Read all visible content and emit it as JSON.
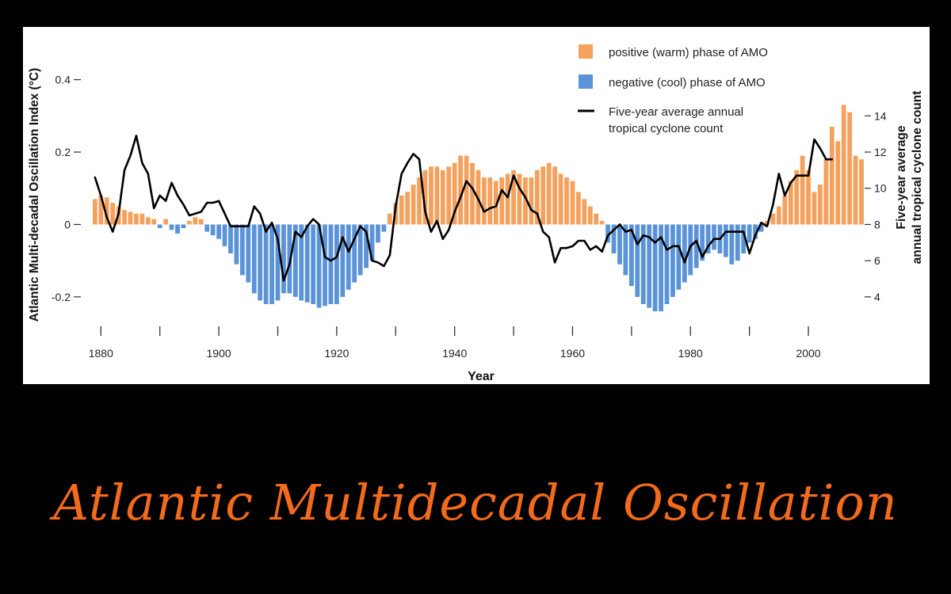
{
  "slide": {
    "title": "Atlantic Multidecadal Oscillation",
    "title_color": "#f26a1b",
    "background": "#000000"
  },
  "chart_data": {
    "type": "bar",
    "title": "",
    "xlabel": "Year",
    "ylabel": "Atlantic Multi-decadal Oscillation Index (°C)",
    "y2label_line1": "Five-year average",
    "y2label_line2": "annual tropical cyclone count",
    "grid": false,
    "legend_position": "top-right",
    "xlim": [
      1877,
      2009
    ],
    "ylim": [
      -0.29,
      0.41
    ],
    "y2lim": [
      2.2,
      16.2
    ],
    "x_ticks": [
      1880,
      1900,
      1920,
      1940,
      1960,
      1980,
      2000
    ],
    "x_minor_ticks": [
      1890,
      1910,
      1930,
      1950,
      1970,
      1990
    ],
    "y_ticks": [
      {
        "value": 0.4,
        "label": "0.4"
      },
      {
        "value": 0.2,
        "label": "0.2"
      },
      {
        "value": 0,
        "label": "0"
      },
      {
        "value": -0.2,
        "label": "-0.2"
      }
    ],
    "y2_ticks": [
      {
        "value": 14,
        "label": "14"
      },
      {
        "value": 12,
        "label": "12"
      },
      {
        "value": 10,
        "label": "10"
      },
      {
        "value": 8,
        "label": "8"
      },
      {
        "value": 6,
        "label": "6"
      },
      {
        "value": 4,
        "label": "4"
      }
    ],
    "legend": [
      {
        "label": "positive (warm) phase of AMO",
        "kind": "bar",
        "color": "#f4a15d"
      },
      {
        "label": "negative (cool) phase of AMO",
        "kind": "bar",
        "color": "#5b93d8"
      },
      {
        "label_line1": "Five-year average annual",
        "label_line2": "tropical cyclone count",
        "kind": "line",
        "color": "#000000"
      }
    ],
    "colors": {
      "positive": "#f4a15d",
      "negative": "#5b93d8",
      "line": "#000000"
    },
    "amo_start_year": 1879,
    "amo_index": [
      0.07,
      0.08,
      0.075,
      0.06,
      0.05,
      0.04,
      0.035,
      0.03,
      0.03,
      0.02,
      0.015,
      -0.01,
      0.015,
      -0.015,
      -0.025,
      -0.01,
      0.01,
      0.02,
      0.015,
      -0.02,
      -0.03,
      -0.04,
      -0.06,
      -0.08,
      -0.11,
      -0.14,
      -0.16,
      -0.19,
      -0.21,
      -0.22,
      -0.22,
      -0.21,
      -0.19,
      -0.19,
      -0.2,
      -0.21,
      -0.215,
      -0.22,
      -0.23,
      -0.225,
      -0.22,
      -0.22,
      -0.2,
      -0.18,
      -0.16,
      -0.14,
      -0.12,
      -0.1,
      -0.05,
      -0.02,
      0.03,
      0.06,
      0.08,
      0.09,
      0.11,
      0.13,
      0.15,
      0.16,
      0.16,
      0.15,
      0.16,
      0.17,
      0.19,
      0.19,
      0.17,
      0.15,
      0.13,
      0.13,
      0.12,
      0.13,
      0.14,
      0.15,
      0.14,
      0.13,
      0.13,
      0.15,
      0.16,
      0.17,
      0.16,
      0.14,
      0.13,
      0.12,
      0.09,
      0.07,
      0.05,
      0.03,
      0.01,
      -0.05,
      -0.08,
      -0.11,
      -0.14,
      -0.17,
      -0.2,
      -0.22,
      -0.23,
      -0.24,
      -0.24,
      -0.22,
      -0.2,
      -0.18,
      -0.16,
      -0.14,
      -0.12,
      -0.1,
      -0.08,
      -0.07,
      -0.08,
      -0.09,
      -0.11,
      -0.1,
      -0.08,
      -0.05,
      -0.04,
      -0.02,
      0.01,
      0.03,
      0.05,
      0.08,
      0.12,
      0.15,
      0.19,
      0.15,
      0.09,
      0.11,
      0.18,
      0.27,
      0.23,
      0.33,
      0.31,
      0.19,
      0.18
    ],
    "cyclone_5yr_avg": [
      {
        "year": 1879,
        "value": 10.6
      },
      {
        "year": 1880,
        "value": 9.6
      },
      {
        "year": 1881,
        "value": 8.4
      },
      {
        "year": 1882,
        "value": 7.6
      },
      {
        "year": 1883,
        "value": 8.6
      },
      {
        "year": 1884,
        "value": 11.0
      },
      {
        "year": 1885,
        "value": 11.8
      },
      {
        "year": 1886,
        "value": 12.9
      },
      {
        "year": 1887,
        "value": 11.4
      },
      {
        "year": 1888,
        "value": 10.8
      },
      {
        "year": 1889,
        "value": 8.9
      },
      {
        "year": 1890,
        "value": 9.6
      },
      {
        "year": 1891,
        "value": 9.3
      },
      {
        "year": 1892,
        "value": 10.3
      },
      {
        "year": 1893,
        "value": 9.6
      },
      {
        "year": 1894,
        "value": 9.1
      },
      {
        "year": 1895,
        "value": 8.5
      },
      {
        "year": 1896,
        "value": 8.6
      },
      {
        "year": 1897,
        "value": 8.7
      },
      {
        "year": 1898,
        "value": 9.2
      },
      {
        "year": 1899,
        "value": 9.2
      },
      {
        "year": 1900,
        "value": 9.3
      },
      {
        "year": 1901,
        "value": 8.6
      },
      {
        "year": 1902,
        "value": 7.9
      },
      {
        "year": 1903,
        "value": 7.9
      },
      {
        "year": 1904,
        "value": 7.9
      },
      {
        "year": 1905,
        "value": 7.9
      },
      {
        "year": 1906,
        "value": 9.0
      },
      {
        "year": 1907,
        "value": 8.6
      },
      {
        "year": 1908,
        "value": 7.6
      },
      {
        "year": 1909,
        "value": 8.1
      },
      {
        "year": 1910,
        "value": 7.2
      },
      {
        "year": 1911,
        "value": 4.9
      },
      {
        "year": 1912,
        "value": 5.8
      },
      {
        "year": 1913,
        "value": 7.6
      },
      {
        "year": 1914,
        "value": 7.3
      },
      {
        "year": 1915,
        "value": 7.9
      },
      {
        "year": 1916,
        "value": 8.3
      },
      {
        "year": 1917,
        "value": 8.0
      },
      {
        "year": 1918,
        "value": 6.2
      },
      {
        "year": 1919,
        "value": 6.0
      },
      {
        "year": 1920,
        "value": 6.2
      },
      {
        "year": 1921,
        "value": 7.3
      },
      {
        "year": 1922,
        "value": 6.5
      },
      {
        "year": 1923,
        "value": 7.2
      },
      {
        "year": 1924,
        "value": 7.9
      },
      {
        "year": 1925,
        "value": 7.6
      },
      {
        "year": 1926,
        "value": 6.0
      },
      {
        "year": 1927,
        "value": 5.9
      },
      {
        "year": 1928,
        "value": 5.7
      },
      {
        "year": 1929,
        "value": 6.3
      },
      {
        "year": 1930,
        "value": 9.0
      },
      {
        "year": 1931,
        "value": 10.8
      },
      {
        "year": 1932,
        "value": 11.4
      },
      {
        "year": 1933,
        "value": 11.9
      },
      {
        "year": 1934,
        "value": 11.6
      },
      {
        "year": 1935,
        "value": 8.7
      },
      {
        "year": 1936,
        "value": 7.6
      },
      {
        "year": 1937,
        "value": 8.2
      },
      {
        "year": 1938,
        "value": 7.2
      },
      {
        "year": 1939,
        "value": 7.7
      },
      {
        "year": 1940,
        "value": 8.7
      },
      {
        "year": 1941,
        "value": 9.5
      },
      {
        "year": 1942,
        "value": 10.4
      },
      {
        "year": 1943,
        "value": 10.0
      },
      {
        "year": 1944,
        "value": 9.4
      },
      {
        "year": 1945,
        "value": 8.7
      },
      {
        "year": 1946,
        "value": 8.9
      },
      {
        "year": 1947,
        "value": 9.0
      },
      {
        "year": 1948,
        "value": 9.9
      },
      {
        "year": 1949,
        "value": 9.5
      },
      {
        "year": 1950,
        "value": 10.7
      },
      {
        "year": 1951,
        "value": 10.0
      },
      {
        "year": 1952,
        "value": 9.5
      },
      {
        "year": 1953,
        "value": 8.8
      },
      {
        "year": 1954,
        "value": 8.6
      },
      {
        "year": 1955,
        "value": 7.6
      },
      {
        "year": 1956,
        "value": 7.3
      },
      {
        "year": 1957,
        "value": 5.9
      },
      {
        "year": 1958,
        "value": 6.7
      },
      {
        "year": 1959,
        "value": 6.7
      },
      {
        "year": 1960,
        "value": 6.8
      },
      {
        "year": 1961,
        "value": 7.1
      },
      {
        "year": 1962,
        "value": 7.1
      },
      {
        "year": 1963,
        "value": 6.6
      },
      {
        "year": 1964,
        "value": 6.8
      },
      {
        "year": 1965,
        "value": 6.5
      },
      {
        "year": 1966,
        "value": 7.4
      },
      {
        "year": 1967,
        "value": 7.7
      },
      {
        "year": 1968,
        "value": 8.0
      },
      {
        "year": 1969,
        "value": 7.6
      },
      {
        "year": 1970,
        "value": 7.7
      },
      {
        "year": 1971,
        "value": 6.9
      },
      {
        "year": 1972,
        "value": 7.4
      },
      {
        "year": 1973,
        "value": 7.3
      },
      {
        "year": 1974,
        "value": 7.0
      },
      {
        "year": 1975,
        "value": 7.3
      },
      {
        "year": 1976,
        "value": 6.6
      },
      {
        "year": 1977,
        "value": 6.8
      },
      {
        "year": 1978,
        "value": 6.8
      },
      {
        "year": 1979,
        "value": 5.9
      },
      {
        "year": 1980,
        "value": 6.8
      },
      {
        "year": 1981,
        "value": 7.1
      },
      {
        "year": 1982,
        "value": 6.2
      },
      {
        "year": 1983,
        "value": 6.8
      },
      {
        "year": 1984,
        "value": 7.2
      },
      {
        "year": 1985,
        "value": 7.2
      },
      {
        "year": 1986,
        "value": 7.6
      },
      {
        "year": 1987,
        "value": 7.6
      },
      {
        "year": 1988,
        "value": 7.6
      },
      {
        "year": 1989,
        "value": 7.6
      },
      {
        "year": 1990,
        "value": 6.4
      },
      {
        "year": 1991,
        "value": 7.4
      },
      {
        "year": 1992,
        "value": 8.1
      },
      {
        "year": 1993,
        "value": 7.9
      },
      {
        "year": 1994,
        "value": 9.1
      },
      {
        "year": 1995,
        "value": 10.8
      },
      {
        "year": 1996,
        "value": 9.6
      },
      {
        "year": 1997,
        "value": 10.3
      },
      {
        "year": 1998,
        "value": 10.7
      },
      {
        "year": 1999,
        "value": 10.7
      },
      {
        "year": 2000,
        "value": 10.7
      },
      {
        "year": 2001,
        "value": 12.7
      },
      {
        "year": 2002,
        "value": 12.2
      },
      {
        "year": 2003,
        "value": 11.6
      },
      {
        "year": 2004,
        "value": 11.6
      }
    ]
  }
}
